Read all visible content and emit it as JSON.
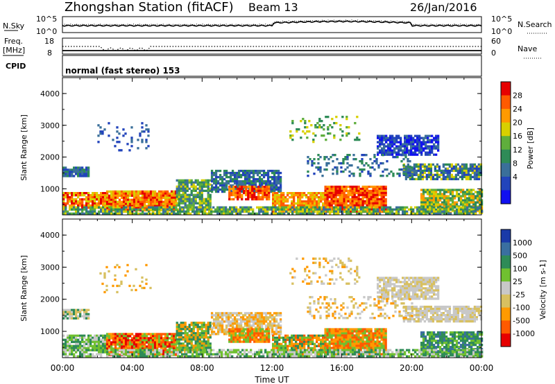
{
  "header": {
    "station": "Zhongshan Station (fitACF)",
    "beam": "Beam 13",
    "date": "26/Jan/2016"
  },
  "noise_panel": {
    "left_label": "N.Sky",
    "right_label": "N.Search",
    "ytick_top": "10^5",
    "ytick_bottom": "10^0",
    "rtick_top": "10^5",
    "rtick_bottom": "10^0"
  },
  "freq_panel": {
    "left_label_1": "Freq.",
    "left_label_2": "[MHz]",
    "cpid_label": "CPID",
    "right_label": "Nave",
    "ytick_top": "18",
    "ytick_bottom": "8",
    "rtick_top": "60",
    "rtick_bottom": "0"
  },
  "program_label": "normal (fast stereo) 153",
  "colors": {
    "power": [
      "#1010f0",
      "#2244bb",
      "#3a6f9a",
      "#2e8b57",
      "#5fae3c",
      "#d8d000",
      "#ff9a00",
      "#ff5a00",
      "#e60000"
    ],
    "velocity": [
      "#e60000",
      "#ff5a00",
      "#ff9a00",
      "#d8c060",
      "#c8c8c8",
      "#70c030",
      "#2e8b57",
      "#3a6fa0",
      "#1a3aa8"
    ]
  },
  "chart_data": [
    {
      "type": "heatmap",
      "title": "",
      "ylabel": "Slant Range [km]",
      "xlabel": "",
      "x_tick_labels": [
        "00:00",
        "04:00",
        "08:00",
        "12:00",
        "16:00",
        "20:00",
        "00:00"
      ],
      "xlim_hours": [
        0,
        24
      ],
      "ylim": [
        180,
        4500
      ],
      "y_ticks": [
        "1000",
        "2000",
        "3000",
        "4000"
      ],
      "colorbar": {
        "label": "Power [dB]",
        "ticks": [
          "28",
          "24",
          "20",
          "16",
          "12",
          "8",
          "4"
        ],
        "range": [
          0,
          30
        ]
      }
    },
    {
      "type": "heatmap",
      "title": "",
      "ylabel": "Slant Range [km]",
      "xlabel": "Time UT",
      "x_tick_labels": [
        "00:00",
        "04:00",
        "08:00",
        "12:00",
        "16:00",
        "20:00",
        "00:00"
      ],
      "xlim_hours": [
        0,
        24
      ],
      "ylim": [
        180,
        4500
      ],
      "y_ticks": [
        "1000",
        "2000",
        "3000",
        "4000"
      ],
      "colorbar": {
        "label": "Velocity [m s-1]",
        "ticks": [
          "1000",
          "500",
          "100",
          "25",
          "-25",
          "-100",
          "-500",
          "-1000"
        ]
      }
    }
  ]
}
